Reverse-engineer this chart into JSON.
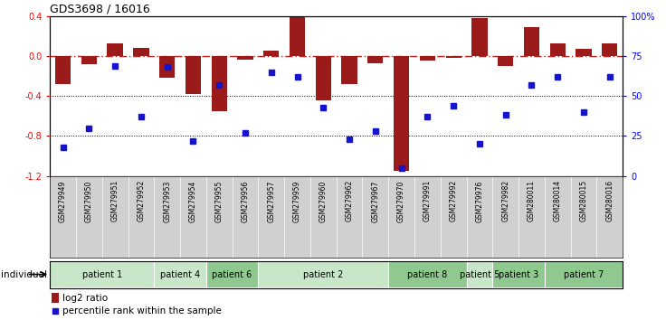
{
  "title": "GDS3698 / 16016",
  "samples": [
    "GSM279949",
    "GSM279950",
    "GSM279951",
    "GSM279952",
    "GSM279953",
    "GSM279954",
    "GSM279955",
    "GSM279956",
    "GSM279957",
    "GSM279959",
    "GSM279960",
    "GSM279962",
    "GSM279967",
    "GSM279970",
    "GSM279991",
    "GSM279992",
    "GSM279976",
    "GSM279982",
    "GSM280011",
    "GSM280014",
    "GSM280015",
    "GSM280016"
  ],
  "log2_ratio": [
    -0.28,
    -0.08,
    0.13,
    0.08,
    -0.22,
    -0.38,
    -0.55,
    -0.04,
    0.05,
    0.4,
    -0.44,
    -0.28,
    -0.07,
    -1.15,
    -0.05,
    -0.02,
    0.38,
    -0.1,
    0.29,
    0.13,
    0.07,
    0.13
  ],
  "percentile": [
    18,
    30,
    69,
    37,
    68,
    22,
    57,
    27,
    65,
    62,
    43,
    23,
    28,
    5,
    37,
    44,
    20,
    38,
    57,
    62,
    40,
    62
  ],
  "patients": [
    {
      "label": "patient 1",
      "start": 0,
      "end": 4,
      "color": "#c8e6c8"
    },
    {
      "label": "patient 4",
      "start": 4,
      "end": 6,
      "color": "#c8e6c8"
    },
    {
      "label": "patient 6",
      "start": 6,
      "end": 8,
      "color": "#90c990"
    },
    {
      "label": "patient 2",
      "start": 8,
      "end": 13,
      "color": "#c8e6c8"
    },
    {
      "label": "patient 8",
      "start": 13,
      "end": 16,
      "color": "#90c990"
    },
    {
      "label": "patient 5",
      "start": 16,
      "end": 17,
      "color": "#c8e6c8"
    },
    {
      "label": "patient 3",
      "start": 17,
      "end": 19,
      "color": "#90c990"
    },
    {
      "label": "patient 7",
      "start": 19,
      "end": 22,
      "color": "#90c990"
    }
  ],
  "bar_color": "#9B1B1B",
  "dot_color": "#1414CC",
  "ylim_left": [
    -1.2,
    0.4
  ],
  "ylim_right": [
    0,
    100
  ],
  "yticks_left": [
    0.4,
    0.0,
    -0.4,
    -0.8,
    -1.2
  ],
  "yticks_right": [
    100,
    75,
    50,
    25,
    0
  ],
  "hlines": [
    -0.4,
    -0.8
  ],
  "zero_line": 0.0,
  "plot_bg_color": "#ffffff"
}
